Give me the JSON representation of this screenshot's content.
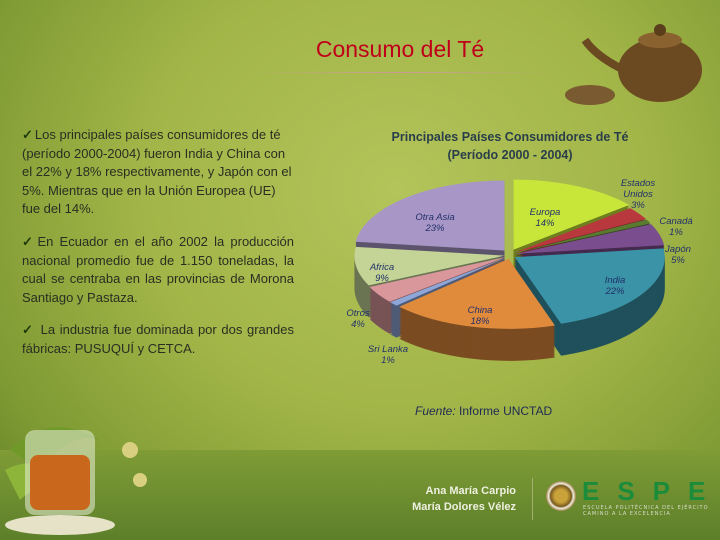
{
  "slide": {
    "title": "Consumo del Té"
  },
  "bullets": [
    "Los principales países consumidores de té (período 2000-2004) fueron India y China con el 22% y 18% respectivamente, y Japón con el 5%. Mientras que en la Unión Europea (UE) fue del 14%.",
    "En Ecuador en el año 2002 la producción nacional promedio fue de 1.150 toneladas, la cual se centraba en las provincias de Morona Santiago y Pastaza.",
    "La industria fue dominada por dos grandes fábricas: PUSUQUÍ y CETCA."
  ],
  "bullet_icon": "checkmark-icon",
  "chart_data": {
    "type": "pie",
    "title": "Principales Países Consumidores de Té",
    "subtitle": "(Período 2000 - 2004)",
    "style": "3d-exploded",
    "slices": [
      {
        "name": "Europa",
        "value": 14,
        "label": "14%",
        "color": "#c8e63a"
      },
      {
        "name": "Estados Unidos",
        "value": 3,
        "label": "3%",
        "color": "#b8383e"
      },
      {
        "name": "Canadá",
        "value": 1,
        "label": "1%",
        "color": "#5a7a30"
      },
      {
        "name": "Japón",
        "value": 5,
        "label": "5%",
        "color": "#7a4e8e"
      },
      {
        "name": "India",
        "value": 22,
        "label": "22%",
        "color": "#3a93a6"
      },
      {
        "name": "China",
        "value": 18,
        "label": "18%",
        "color": "#e08a3c"
      },
      {
        "name": "Sri Lanka",
        "value": 1,
        "label": "1%",
        "color": "#8fa6d8"
      },
      {
        "name": "Otros",
        "value": 4,
        "label": "4%",
        "color": "#d9979c"
      },
      {
        "name": "Africa",
        "value": 9,
        "label": "9%",
        "color": "#c4d496"
      },
      {
        "name": "Otra Asia",
        "value": 23,
        "label": "23%",
        "color": "#a897c6"
      }
    ]
  },
  "source": {
    "prefix": "Fuente:",
    "text": "Informe UNCTAD"
  },
  "footer": {
    "authors": [
      "Ana María Carpio",
      "María Dolores Vélez"
    ],
    "logo_text": "ESPE",
    "logo_subtitle": "ESCUELA POLITÉCNICA DEL EJÉRCITO",
    "logo_tagline": "CAMINO A LA EXCELENCIA"
  }
}
